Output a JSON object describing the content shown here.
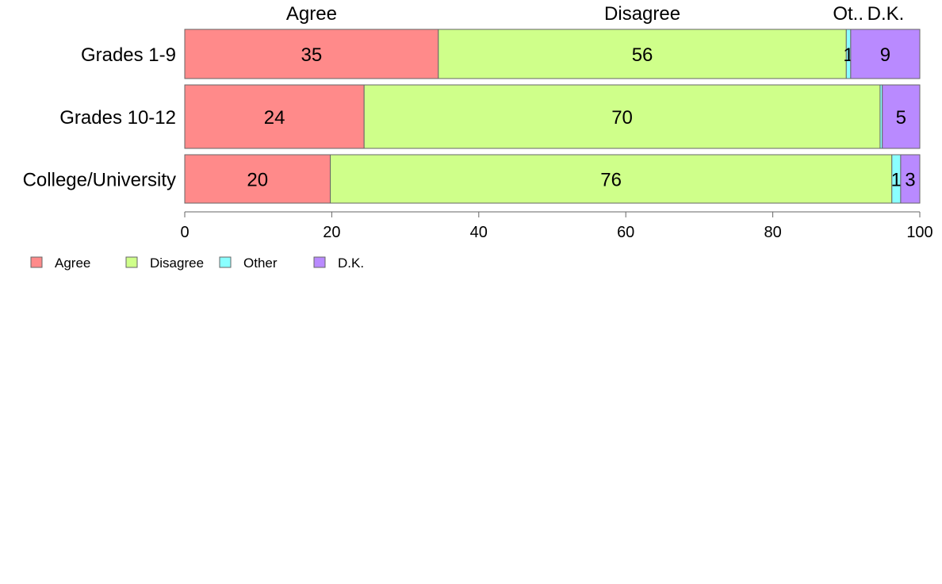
{
  "chart_data": {
    "type": "bar",
    "orientation": "horizontal",
    "stacked": true,
    "categories": [
      "Grades 1-9",
      "Grades 10-12",
      "College/University"
    ],
    "series": [
      {
        "name": "Agree",
        "color": "#ff8a8a",
        "values": [
          34.5,
          24.4,
          19.8
        ],
        "labels": [
          "35",
          "24",
          "20"
        ]
      },
      {
        "name": "Disagree",
        "color": "#cfff8a",
        "values": [
          55.5,
          70.2,
          76.4
        ],
        "labels": [
          "56",
          "70",
          "76"
        ]
      },
      {
        "name": "Other",
        "color": "#8affff",
        "values": [
          0.6,
          0.3,
          1.2
        ],
        "labels": [
          "1",
          "",
          "1"
        ]
      },
      {
        "name": "D.K.",
        "color": "#b98aff",
        "values": [
          9.4,
          5.1,
          2.6
        ],
        "labels": [
          "9",
          "5",
          "3"
        ]
      }
    ],
    "top_labels": [
      "Agree",
      "Disagree",
      "Ot..",
      "D.K."
    ],
    "xlim": [
      0,
      100
    ],
    "xticks": [
      "0",
      "20",
      "40",
      "60",
      "80",
      "100"
    ],
    "grid": false,
    "legend": {
      "position": "bottom-left",
      "items": [
        "Agree",
        "Disagree",
        "Other",
        "D.K."
      ]
    },
    "title": "",
    "xlabel": "",
    "ylabel": ""
  }
}
